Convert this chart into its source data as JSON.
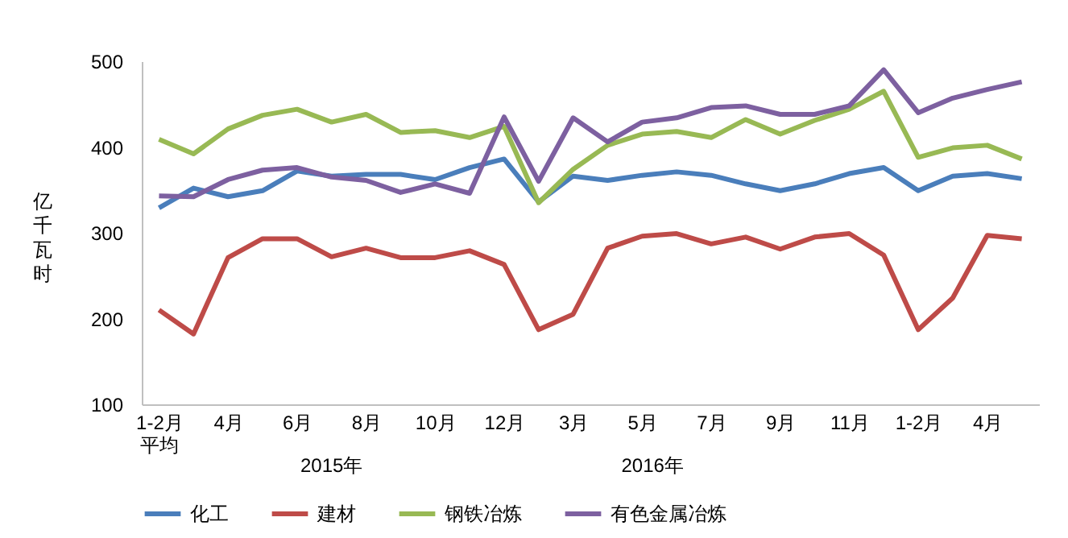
{
  "chart_data": {
    "type": "line",
    "ylabel": "亿千瓦时",
    "categories": [
      "1-2月平均",
      null,
      "4月",
      null,
      "6月",
      null,
      "8月",
      null,
      "10月",
      null,
      "12月",
      null,
      "3月",
      null,
      "5月",
      null,
      "7月",
      null,
      "9月",
      null,
      "11月",
      null,
      "1-2月",
      null,
      "4月",
      null
    ],
    "series": [
      {
        "name": "化工",
        "color": "#4a7ebb",
        "values": [
          329,
          352,
          342,
          349,
          372,
          366,
          368,
          368,
          362,
          376,
          386,
          336,
          366,
          361,
          367,
          371,
          367,
          357,
          349,
          357,
          369,
          376,
          349,
          366,
          369,
          363
        ]
      },
      {
        "name": "建材",
        "color": "#be4b48",
        "values": [
          210,
          182,
          271,
          293,
          293,
          272,
          282,
          271,
          271,
          279,
          263,
          187,
          205,
          282,
          296,
          299,
          287,
          295,
          281,
          295,
          299,
          274,
          187,
          224,
          297,
          293
        ]
      },
      {
        "name": "钢铁冶炼",
        "color": "#98b954",
        "values": [
          409,
          392,
          421,
          437,
          444,
          429,
          438,
          417,
          419,
          411,
          424,
          335,
          374,
          402,
          415,
          418,
          411,
          432,
          415,
          431,
          444,
          465,
          388,
          399,
          402,
          386
        ]
      },
      {
        "name": "有色金属冶炼",
        "color": "#7d60a0",
        "values": [
          343,
          342,
          362,
          373,
          376,
          365,
          361,
          347,
          357,
          346,
          435,
          360,
          434,
          406,
          429,
          434,
          446,
          448,
          438,
          438,
          448,
          490,
          440,
          457,
          467,
          476
        ]
      }
    ],
    "ylim": [
      100,
      500
    ],
    "yticks": [
      100,
      200,
      300,
      400,
      500
    ],
    "grid": false,
    "legend": "bottom",
    "annotations": [
      "2015年",
      "2016年"
    ]
  }
}
